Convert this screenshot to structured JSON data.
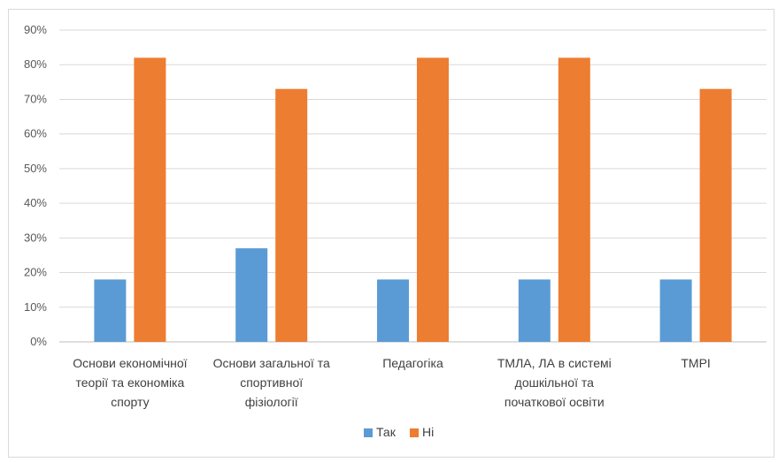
{
  "chart_data": {
    "type": "bar",
    "categories": [
      [
        "Основи економічної",
        "теорії та економіка",
        "спорту"
      ],
      [
        "Основи загальної та",
        "спортивної",
        "фізіології"
      ],
      [
        "Педагогіка"
      ],
      [
        "ТМЛА, ЛА в системі",
        "дошкільної та",
        "початкової освіти"
      ],
      [
        "ТМРІ"
      ]
    ],
    "series": [
      {
        "name": "Так",
        "values": [
          18,
          27,
          18,
          18,
          18
        ],
        "color": "#5B9BD5"
      },
      {
        "name": "Ні",
        "values": [
          82,
          73,
          82,
          82,
          73
        ],
        "color": "#ED7D31"
      }
    ],
    "yticks": [
      "0%",
      "10%",
      "20%",
      "30%",
      "40%",
      "50%",
      "60%",
      "70%",
      "80%",
      "90%"
    ],
    "ylim": [
      0,
      90
    ],
    "grid": true,
    "legend_position": "bottom",
    "title": "",
    "xlabel": "",
    "ylabel": ""
  }
}
